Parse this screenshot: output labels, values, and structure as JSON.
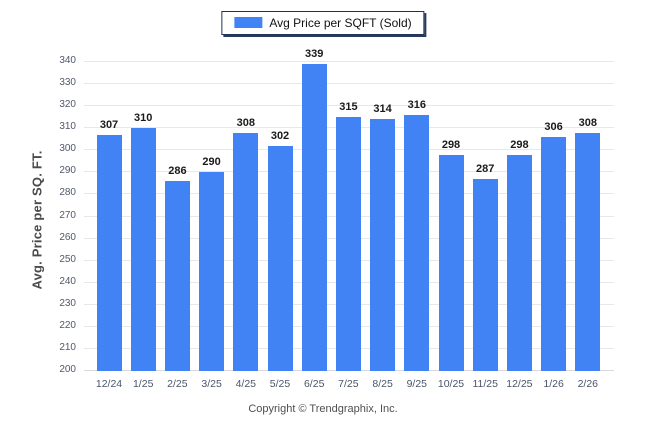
{
  "chart_data": {
    "type": "bar",
    "legend": "Avg Price per SQFT (Sold)",
    "ylabel": "Avg. Price per SQ. FT.",
    "xlabel": "",
    "categories": [
      "12/24",
      "1/25",
      "2/25",
      "3/25",
      "4/25",
      "5/25",
      "6/25",
      "7/25",
      "8/25",
      "9/25",
      "10/25",
      "11/25",
      "12/25",
      "1/26",
      "2/26"
    ],
    "values": [
      307,
      310,
      286,
      290,
      308,
      302,
      339,
      315,
      314,
      316,
      298,
      287,
      298,
      306,
      308
    ],
    "ylim": [
      200,
      340
    ],
    "ytick_step": 10,
    "grid": "horizontal",
    "legend_position": "top-center",
    "bar_color": "#4182f5"
  },
  "footer": {
    "copyright": "Copyright © Trendgraphix, Inc."
  }
}
